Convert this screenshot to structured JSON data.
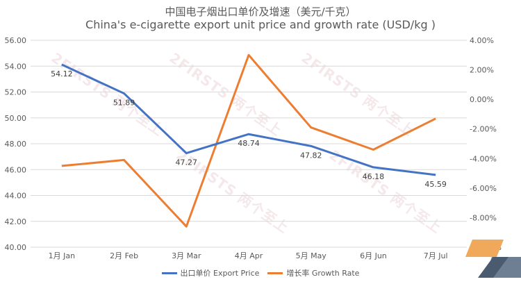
{
  "title_cn": "中国电子烟出口单价及增速（美元/千克）",
  "title_en": "China's e-cigarette export unit price and growth rate (USD/kg )",
  "watermark": "2FIRSTS 两个至上",
  "colors": {
    "price": "#4472C4",
    "growth": "#ED7D31",
    "grid": "#D9D9D9"
  },
  "chart_data": {
    "type": "line",
    "categories": [
      "1月 Jan",
      "2月 Feb",
      "3月 Mar",
      "4月 Apr",
      "5月 May",
      "6月 Jun",
      "7月 Jul"
    ],
    "series": [
      {
        "name": "出口单价 Export Price",
        "axis": "left",
        "values": [
          54.12,
          51.89,
          47.27,
          48.74,
          47.82,
          46.18,
          45.59
        ],
        "labels": [
          "54.12",
          "51.89",
          "47.27",
          "48.74",
          "47.82",
          "46.18",
          "45.59"
        ]
      },
      {
        "name": "增长率 Growth Rate",
        "axis": "right",
        "values": [
          -4.5,
          -4.1,
          -8.6,
          3.0,
          -1.9,
          -3.4,
          -1.3
        ]
      }
    ],
    "y_left": {
      "min": 40,
      "max": 56,
      "step": 2,
      "ticks": [
        "40.00",
        "42.00",
        "44.00",
        "46.00",
        "48.00",
        "50.00",
        "52.00",
        "54.00",
        "56.00"
      ]
    },
    "y_right": {
      "min": -10,
      "max": 4,
      "step": 2,
      "ticks": [
        "-10.00%",
        "-8.00%",
        "-6.00%",
        "-4.00%",
        "-2.00%",
        "0.00%",
        "2.00%",
        "4.00%"
      ]
    },
    "grid": true,
    "legend": "bottom"
  }
}
